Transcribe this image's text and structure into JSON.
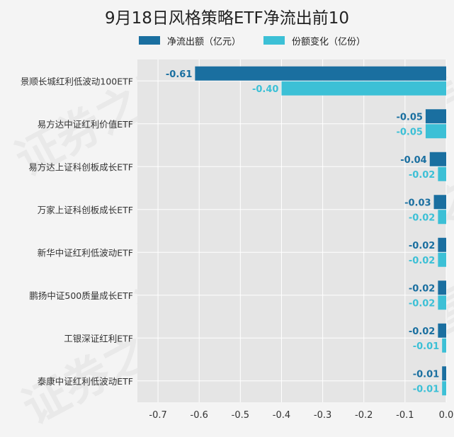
{
  "chart_data": {
    "type": "bar",
    "orientation": "horizontal",
    "title": "9月18日风格策略ETF净流出前10",
    "categories": [
      "景顺长城红利低波动100ETF",
      "易方达中证红利价值ETF",
      "易方达上证科创板成长ETF",
      "万家上证科创板成长ETF",
      "新华中证红利低波动ETF",
      "鹏扬中证500质量成长ETF",
      "工银深证红利ETF",
      "泰康中证红利低波动ETF"
    ],
    "series": [
      {
        "name": "净流出额（亿元）",
        "color": "#1a6fa0",
        "values": [
          -0.61,
          -0.05,
          -0.04,
          -0.03,
          -0.02,
          -0.02,
          -0.02,
          -0.01
        ],
        "labels": [
          "-0.61",
          "-0.05",
          "-0.04",
          "-0.03",
          "-0.02",
          "-0.02",
          "-0.02",
          "-0.01"
        ]
      },
      {
        "name": "份额变化（亿份）",
        "color": "#3cc0d6",
        "values": [
          -0.4,
          -0.05,
          -0.02,
          -0.02,
          -0.02,
          -0.02,
          -0.01,
          -0.01
        ],
        "labels": [
          "-0.40",
          "-0.05",
          "-0.02",
          "-0.02",
          "-0.02",
          "-0.02",
          "-0.01",
          "-0.01"
        ]
      }
    ],
    "xlim": [
      -0.75,
      0.0
    ],
    "xticks": [
      "-0.7",
      "-0.6",
      "-0.5",
      "-0.4",
      "-0.3",
      "-0.2",
      "-0.1",
      "0.0"
    ],
    "xtick_values": [
      -0.7,
      -0.6,
      -0.5,
      -0.4,
      -0.3,
      -0.2,
      -0.1,
      0.0
    ],
    "grid": true,
    "legend_position": "top",
    "plot_background": "#e5e5e5"
  },
  "watermark": "证券之星"
}
